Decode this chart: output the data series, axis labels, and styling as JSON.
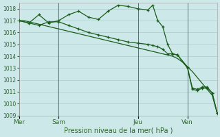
{
  "background_color": "#cce8e8",
  "grid_color": "#aacccc",
  "line_color": "#1a5c1a",
  "title": "Pression niveau de la mer( hPa )",
  "ylim": [
    1009,
    1018.5
  ],
  "yticks": [
    1009,
    1010,
    1011,
    1012,
    1013,
    1014,
    1015,
    1016,
    1017,
    1018
  ],
  "day_labels": [
    "Mer",
    "Sam",
    "Jeu",
    "Ven"
  ],
  "day_positions": [
    0,
    16,
    48,
    68
  ],
  "xlim": [
    0,
    80
  ],
  "series1_x": [
    0,
    2,
    4,
    6,
    8,
    10,
    12,
    14,
    16,
    18,
    20,
    22,
    24,
    26,
    28,
    30,
    32,
    34,
    36,
    38,
    40,
    42,
    44,
    46,
    48,
    50,
    52,
    54,
    56,
    58,
    60,
    62,
    64,
    66,
    68,
    70,
    72,
    74,
    76,
    78,
    80
  ],
  "series1_y": [
    1017.0,
    1017.0,
    1016.9,
    1016.8,
    1016.7,
    1016.6,
    1016.5,
    1016.4,
    1016.3,
    1016.2,
    1016.1,
    1016.0,
    1015.9,
    1015.8,
    1015.7,
    1015.6,
    1015.5,
    1015.4,
    1015.3,
    1015.2,
    1015.1,
    1015.0,
    1014.9,
    1014.8,
    1014.7,
    1014.6,
    1014.5,
    1014.4,
    1014.3,
    1014.2,
    1014.1,
    1014.0,
    1013.8,
    1013.5,
    1013.1,
    1012.7,
    1012.2,
    1011.7,
    1011.2,
    1010.7,
    1009.2
  ],
  "series2_x": [
    0,
    4,
    8,
    12,
    16,
    20,
    24,
    28,
    32,
    36,
    40,
    44,
    48,
    52,
    54,
    56,
    58,
    60,
    62,
    64,
    68,
    70,
    72,
    74,
    76,
    78,
    80
  ],
  "series2_y": [
    1017.0,
    1016.8,
    1017.5,
    1016.8,
    1017.0,
    1017.5,
    1017.8,
    1017.3,
    1017.1,
    1017.8,
    1018.3,
    1018.2,
    1018.0,
    1017.9,
    1018.3,
    1017.0,
    1016.5,
    1015.0,
    1014.2,
    1014.1,
    1013.1,
    1011.3,
    1011.2,
    1011.4,
    1011.4,
    1010.9,
    1009.2
  ],
  "series3_x": [
    0,
    4,
    8,
    12,
    16,
    20,
    24,
    28,
    32,
    36,
    40,
    44,
    48,
    52,
    54,
    56,
    58,
    60,
    62,
    64,
    68,
    70,
    72,
    74,
    76,
    78,
    80
  ],
  "series3_y": [
    1017.0,
    1016.8,
    1016.6,
    1016.9,
    1016.9,
    1016.6,
    1016.3,
    1016.0,
    1015.8,
    1015.6,
    1015.4,
    1015.2,
    1015.1,
    1015.0,
    1014.9,
    1014.8,
    1014.6,
    1014.2,
    1014.2,
    1014.1,
    1013.0,
    1011.2,
    1011.1,
    1011.3,
    1011.3,
    1010.9,
    1009.2
  ],
  "vline_color": "#666666",
  "tick_color": "#336633",
  "xlabel_color": "#336633",
  "ylabel_fontsize": 6,
  "xlabel_fontsize": 7
}
